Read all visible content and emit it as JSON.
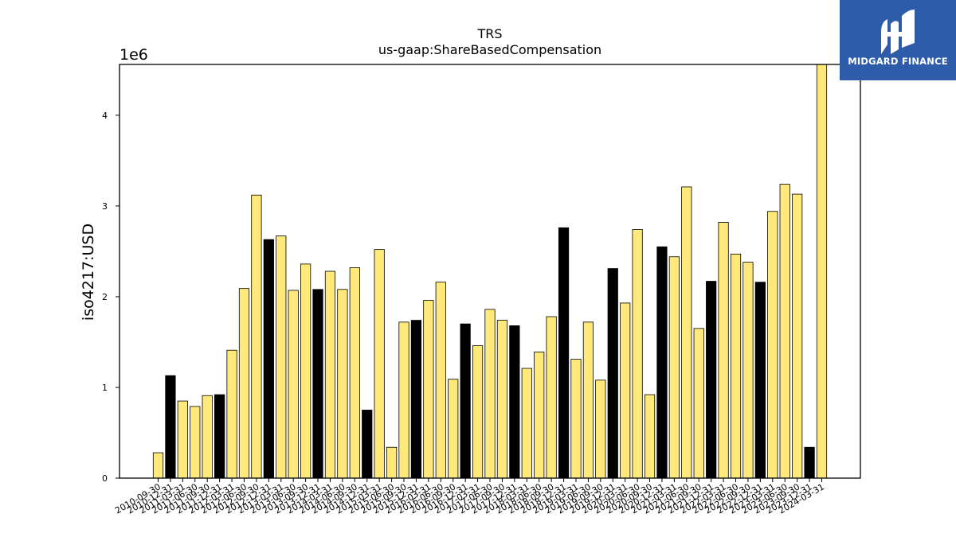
{
  "chart_data": {
    "type": "bar",
    "title": "TRS",
    "subtitle": "us-gaap:ShareBasedCompensation",
    "ylabel": "iso4217:USD",
    "xlabel": "",
    "y_multiplier_label": "1e6",
    "ylim": [
      0,
      4560000
    ],
    "yticks": [
      0,
      1,
      2,
      3,
      4
    ],
    "grid": false,
    "colors": {
      "annual": "#000000",
      "quarterly": "#ffe97a",
      "edge": "#000000"
    },
    "categories": [
      "2010-09-30",
      "2010-12-31",
      "2011-03-31",
      "2011-06-30",
      "2011-09-30",
      "2011-12-31",
      "2012-03-31",
      "2012-06-30",
      "2012-09-30",
      "2012-12-31",
      "2013-03-31",
      "2013-06-30",
      "2013-09-30",
      "2013-12-31",
      "2014-03-31",
      "2014-06-30",
      "2014-09-30",
      "2014-12-31",
      "2015-03-31",
      "2015-06-30",
      "2015-09-30",
      "2015-12-31",
      "2016-03-31",
      "2016-06-30",
      "2016-09-30",
      "2016-12-31",
      "2017-03-31",
      "2017-06-30",
      "2017-09-30",
      "2017-12-31",
      "2018-03-31",
      "2018-06-30",
      "2018-09-30",
      "2018-12-31",
      "2019-03-31",
      "2019-06-30",
      "2019-09-30",
      "2019-12-31",
      "2020-03-31",
      "2020-06-30",
      "2020-09-30",
      "2020-12-31",
      "2021-03-31",
      "2021-06-30",
      "2021-09-30",
      "2021-12-31",
      "2022-03-31",
      "2022-06-30",
      "2022-09-30",
      "2022-12-31",
      "2023-03-31",
      "2023-06-30",
      "2023-09-30",
      "2023-12-31",
      "2024-03-31"
    ],
    "values": [
      280000,
      1130000,
      850000,
      790000,
      910000,
      920000,
      1410000,
      2090000,
      3120000,
      2630000,
      2670000,
      2070000,
      2360000,
      2080000,
      2280000,
      2080000,
      2320000,
      750000,
      2520000,
      340000,
      1720000,
      1740000,
      1960000,
      2160000,
      1090000,
      1700000,
      1460000,
      1860000,
      1740000,
      1680000,
      1210000,
      1390000,
      1780000,
      2760000,
      1310000,
      1720000,
      1080000,
      2310000,
      1930000,
      2740000,
      920000,
      2550000,
      2440000,
      3210000,
      1650000,
      2170000,
      2820000,
      2470000,
      2380000,
      2160000,
      2940000,
      3240000,
      3130000,
      340000,
      4560000
    ],
    "annual_flags": [
      0,
      1,
      0,
      0,
      0,
      1,
      0,
      0,
      0,
      1,
      0,
      0,
      0,
      1,
      0,
      0,
      0,
      1,
      0,
      0,
      0,
      1,
      0,
      0,
      0,
      1,
      0,
      0,
      0,
      1,
      0,
      0,
      0,
      1,
      0,
      0,
      0,
      1,
      0,
      0,
      0,
      1,
      0,
      0,
      0,
      1,
      0,
      0,
      0,
      1,
      0,
      0,
      0,
      1,
      0
    ]
  },
  "logo": {
    "text": "MIDGARD FINANCE"
  }
}
